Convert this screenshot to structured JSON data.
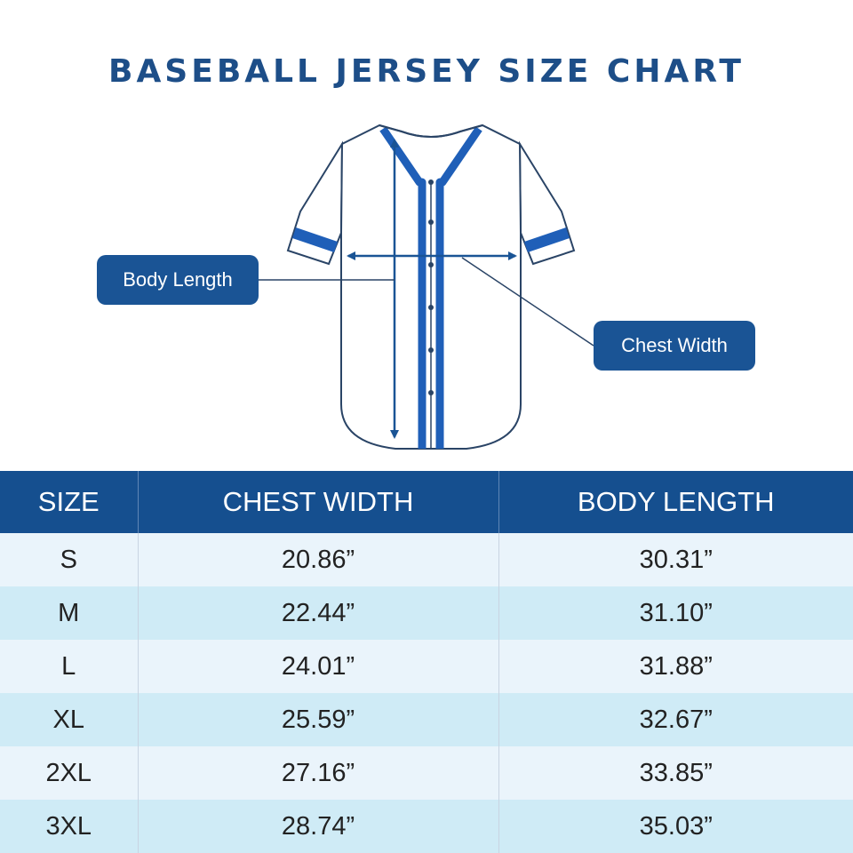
{
  "title": "BASEBALL JERSEY SIZE CHART",
  "callouts": {
    "body_length": "Body Length",
    "chest_width": "Chest Width"
  },
  "colors": {
    "primary_blue": "#1a5495",
    "stripe_blue": "#1f5fb8",
    "outline": "#2a4466",
    "row_light": "#eaf4fb",
    "row_cyan": "#cfebf6"
  },
  "table": {
    "headers": [
      "SIZE",
      "CHEST WIDTH",
      "BODY LENGTH"
    ],
    "rows": [
      {
        "size": "S",
        "chest": "20.86”",
        "length": "30.31”"
      },
      {
        "size": "M",
        "chest": "22.44”",
        "length": "31.10”"
      },
      {
        "size": "L",
        "chest": "24.01”",
        "length": "31.88”"
      },
      {
        "size": "XL",
        "chest": "25.59”",
        "length": "32.67”"
      },
      {
        "size": "2XL",
        "chest": "27.16”",
        "length": "33.85”"
      },
      {
        "size": "3XL",
        "chest": "28.74”",
        "length": "35.03”"
      }
    ]
  }
}
